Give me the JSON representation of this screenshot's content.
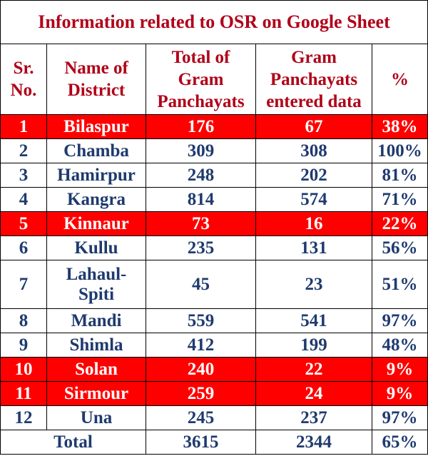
{
  "title": "Information related to OSR on Google Sheet",
  "headers": {
    "sr": [
      "Sr.",
      "No."
    ],
    "district": [
      "Name of",
      "District"
    ],
    "total": [
      "Total of",
      "Gram",
      "Panchayats"
    ],
    "entered": [
      "Gram",
      "Panchayats",
      "entered data"
    ],
    "percent": "%"
  },
  "highlight_color": "#ff0000",
  "rows": [
    {
      "sr": "1",
      "district": "Bilaspur",
      "total": "176",
      "entered": "67",
      "percent": "38%",
      "highlight": true
    },
    {
      "sr": "2",
      "district": "Chamba",
      "total": "309",
      "entered": "308",
      "percent": "100%",
      "highlight": false
    },
    {
      "sr": "3",
      "district": "Hamirpur",
      "total": "248",
      "entered": "202",
      "percent": "81%",
      "highlight": false
    },
    {
      "sr": "4",
      "district": "Kangra",
      "total": "814",
      "entered": "574",
      "percent": "71%",
      "highlight": false
    },
    {
      "sr": "5",
      "district": "Kinnaur",
      "total": "73",
      "entered": "16",
      "percent": "22%",
      "highlight": true
    },
    {
      "sr": "6",
      "district": "Kullu",
      "total": "235",
      "entered": "131",
      "percent": "56%",
      "highlight": false
    },
    {
      "sr": "7",
      "district": "Lahaul-\nSpiti",
      "total": "45",
      "entered": "23",
      "percent": "51%",
      "highlight": false
    },
    {
      "sr": "8",
      "district": "Mandi",
      "total": "559",
      "entered": "541",
      "percent": "97%",
      "highlight": false
    },
    {
      "sr": "9",
      "district": "Shimla",
      "total": "412",
      "entered": "199",
      "percent": "48%",
      "highlight": false
    },
    {
      "sr": "10",
      "district": "Solan",
      "total": "240",
      "entered": "22",
      "percent": "9%",
      "highlight": true
    },
    {
      "sr": "11",
      "district": "Sirmour",
      "total": "259",
      "entered": "24",
      "percent": "9%",
      "highlight": true
    },
    {
      "sr": "12",
      "district": "Una",
      "total": "245",
      "entered": "237",
      "percent": "97%",
      "highlight": false
    }
  ],
  "total": {
    "label": "Total",
    "total": "3615",
    "entered": "2344",
    "percent": "65%"
  }
}
